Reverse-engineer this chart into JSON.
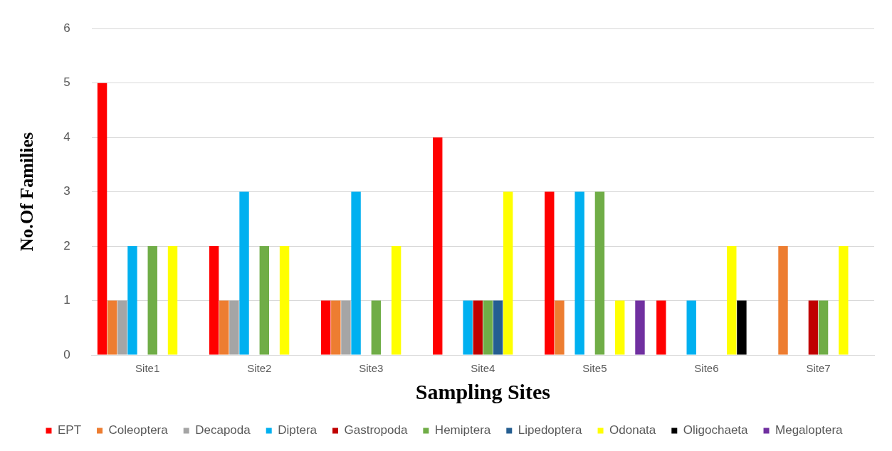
{
  "chart_data": {
    "type": "bar",
    "xlabel": "Sampling Sites",
    "ylabel": "No.Of Families",
    "categories": [
      "Site1",
      "Site2",
      "Site3",
      "Site4",
      "Site5",
      "Site6",
      "Site7"
    ],
    "ylim": [
      0,
      6
    ],
    "yticks": [
      0,
      1,
      2,
      3,
      4,
      5,
      6
    ],
    "grid": "y",
    "legend": "bottom",
    "series": [
      {
        "name": "EPT",
        "color": "#ff0000",
        "values": [
          5,
          2,
          1,
          4,
          3,
          1,
          0
        ]
      },
      {
        "name": "Coleoptera",
        "color": "#ed7d31",
        "values": [
          1,
          1,
          1,
          0,
          1,
          0,
          2
        ]
      },
      {
        "name": "Decapoda",
        "color": "#a5a5a5",
        "values": [
          1,
          1,
          1,
          0,
          0,
          0,
          0
        ]
      },
      {
        "name": "Diptera",
        "color": "#00b0f0",
        "values": [
          2,
          3,
          3,
          1,
          3,
          1,
          0
        ]
      },
      {
        "name": "Gastropoda",
        "color": "#c00000",
        "values": [
          0,
          0,
          0,
          1,
          0,
          0,
          1
        ]
      },
      {
        "name": "Hemiptera",
        "color": "#70ad47",
        "values": [
          2,
          2,
          1,
          1,
          3,
          0,
          1
        ]
      },
      {
        "name": "Lipedoptera",
        "color": "#255e91",
        "values": [
          0,
          0,
          0,
          1,
          0,
          0,
          0
        ]
      },
      {
        "name": "Odonata",
        "color": "#ffff00",
        "values": [
          2,
          2,
          2,
          3,
          1,
          2,
          2
        ]
      },
      {
        "name": "Oligochaeta",
        "color": "#000000",
        "values": [
          0,
          0,
          0,
          0,
          0,
          1,
          0
        ]
      },
      {
        "name": "Megaloptera",
        "color": "#7030a0",
        "values": [
          0,
          0,
          0,
          0,
          1,
          0,
          0
        ]
      }
    ]
  }
}
